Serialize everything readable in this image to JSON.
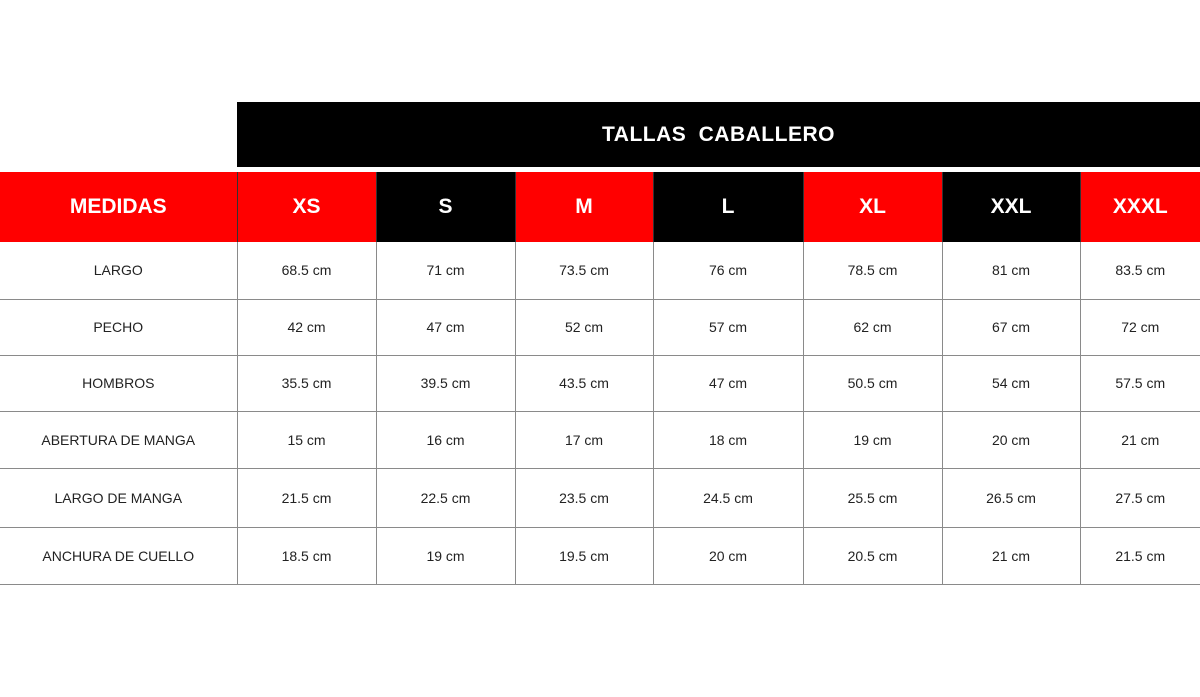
{
  "title": "TALLAS  CABALLERO",
  "colors": {
    "red": "#ff0000",
    "black": "#000000"
  },
  "header": {
    "label": "MEDIDAS",
    "sizes": [
      "XS",
      "S",
      "M",
      "L",
      "XL",
      "XXL",
      "XXXL"
    ],
    "size_colors": [
      "red",
      "black",
      "red",
      "black",
      "red",
      "black",
      "red"
    ]
  },
  "rows": [
    {
      "label": "LARGO",
      "values": [
        "68.5 cm",
        "71 cm",
        "73.5 cm",
        "76 cm",
        "78.5 cm",
        "81 cm",
        "83.5 cm"
      ]
    },
    {
      "label": "PECHO",
      "values": [
        "42 cm",
        "47 cm",
        "52 cm",
        "57 cm",
        "62 cm",
        "67 cm",
        "72 cm"
      ]
    },
    {
      "label": "HOMBROS",
      "values": [
        "35.5 cm",
        "39.5 cm",
        "43.5 cm",
        "47 cm",
        "50.5 cm",
        "54 cm",
        "57.5 cm"
      ]
    },
    {
      "label": "ABERTURA DE MANGA",
      "values": [
        "15 cm",
        "16 cm",
        "17 cm",
        "18 cm",
        "19 cm",
        "20 cm",
        "21 cm"
      ]
    },
    {
      "label": "LARGO DE MANGA",
      "values": [
        "21.5 cm",
        "22.5 cm",
        "23.5 cm",
        "24.5 cm",
        "25.5 cm",
        "26.5 cm",
        "27.5 cm"
      ]
    },
    {
      "label": "ANCHURA DE CUELLO",
      "values": [
        "18.5 cm",
        "19 cm",
        "19.5 cm",
        "20 cm",
        "20.5 cm",
        "21 cm",
        "21.5 cm"
      ]
    }
  ]
}
